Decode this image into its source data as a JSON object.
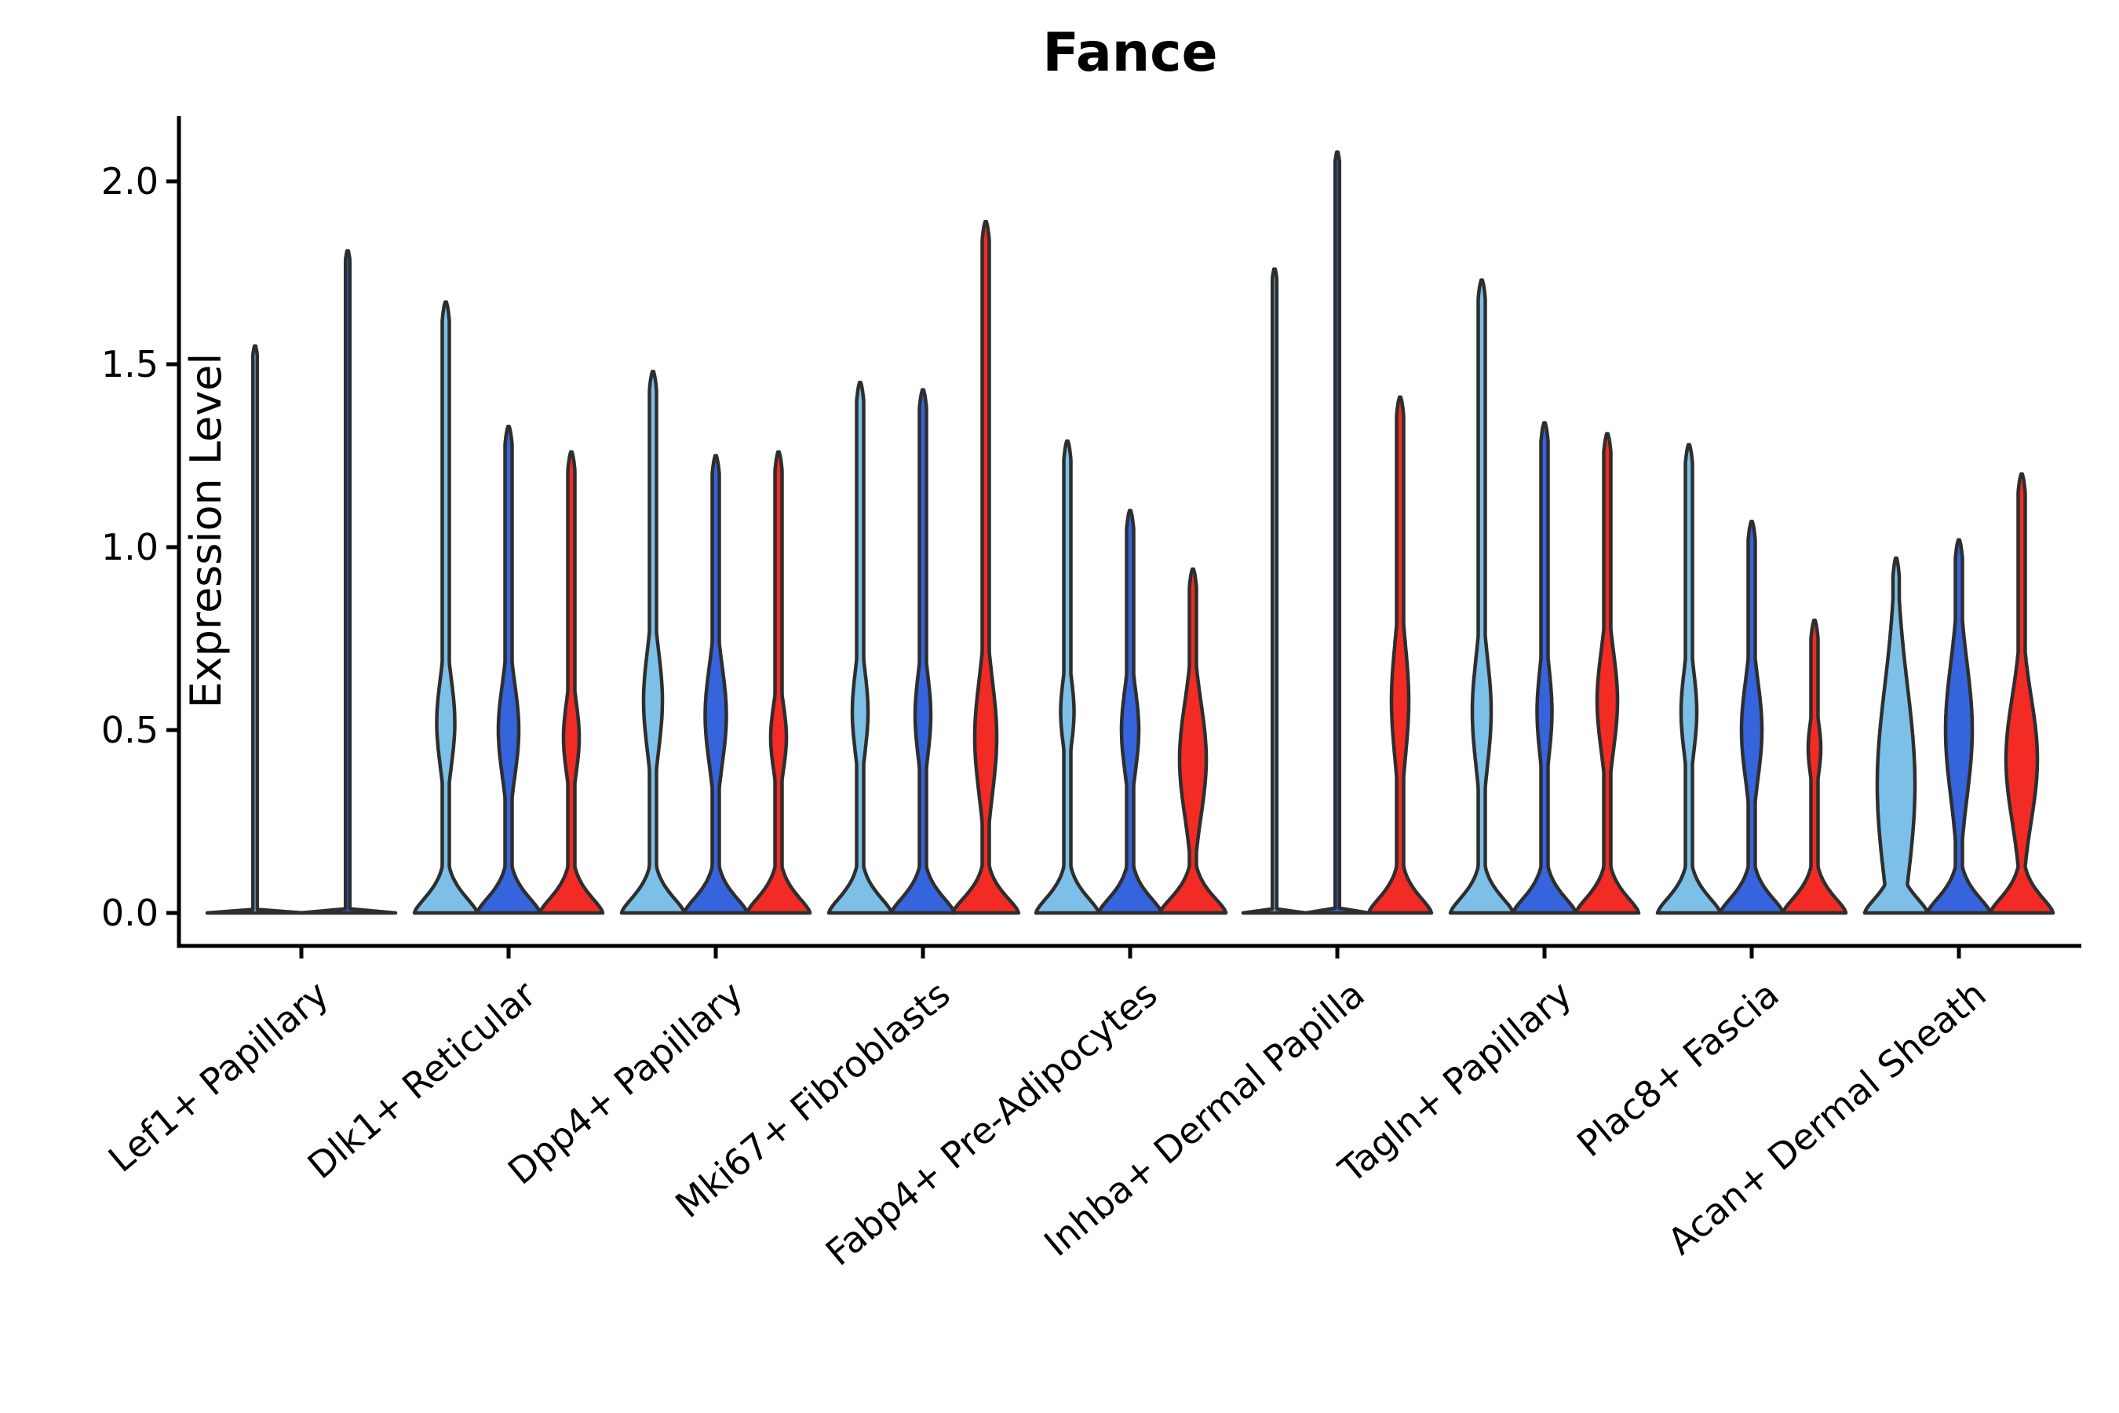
{
  "title": "Fance",
  "ylabel": "Expression Level",
  "colors": {
    "lightblue": "#7CC0E8",
    "blue": "#3564DC",
    "red": "#F22B24",
    "outline": "#2E2E2E",
    "axis": "#000000"
  },
  "yticks": [
    {
      "label": "2.0",
      "value": 2.0
    },
    {
      "label": "1.5",
      "value": 1.5
    },
    {
      "label": "1.0",
      "value": 1.0
    },
    {
      "label": "0.5",
      "value": 0.5
    },
    {
      "label": "0.0",
      "value": 0.0
    }
  ],
  "chart_data": {
    "type": "violin",
    "title": "Fance",
    "xlabel": "",
    "ylabel": "Expression Level",
    "ylim": [
      -0.09,
      2.18
    ],
    "grid": false,
    "legend": "none",
    "series": [
      "lightblue",
      "blue",
      "red"
    ],
    "categories": [
      "Lef1+ Papillary",
      "Dlk1+ Reticular",
      "Dpp4+ Papillary",
      "Mki67+ Fibroblasts",
      "Fabp4+ Pre-Adipocytes",
      "Inhba+ Dermal Papilla",
      "Tagln+ Papillary",
      "Plac8+ Fascia",
      "Acan+ Dermal Sheath"
    ],
    "groups": [
      {
        "category": "Lef1+ Papillary",
        "violins": [
          {
            "color": "lightblue",
            "shape": "flat",
            "max": 1.55,
            "half_width": 61
          },
          {
            "color": "blue",
            "shape": "flat",
            "max": 1.81,
            "half_width": 61
          }
        ]
      },
      {
        "category": "Dlk1+ Reticular",
        "violins": [
          {
            "color": "lightblue",
            "shape": "body",
            "max": 1.67,
            "base": 40,
            "bulge_center": 0.52,
            "bulge_sigma": 0.17,
            "bulge_peak": 11.5
          },
          {
            "color": "blue",
            "shape": "body",
            "max": 1.33,
            "base": 40,
            "bulge_center": 0.5,
            "bulge_sigma": 0.18,
            "bulge_peak": 13
          },
          {
            "color": "red",
            "shape": "body",
            "max": 1.26,
            "base": 40,
            "bulge_center": 0.48,
            "bulge_sigma": 0.14,
            "bulge_peak": 10
          }
        ]
      },
      {
        "category": "Dpp4+ Papillary",
        "violins": [
          {
            "color": "lightblue",
            "shape": "body",
            "max": 1.48,
            "base": 40,
            "bulge_center": 0.58,
            "bulge_sigma": 0.19,
            "bulge_peak": 12
          },
          {
            "color": "blue",
            "shape": "body",
            "max": 1.25,
            "base": 40,
            "bulge_center": 0.54,
            "bulge_sigma": 0.19,
            "bulge_peak": 13.5
          },
          {
            "color": "red",
            "shape": "body",
            "max": 1.26,
            "base": 40,
            "bulge_center": 0.48,
            "bulge_sigma": 0.13,
            "bulge_peak": 10
          }
        ]
      },
      {
        "category": "Mki67+ Fibroblasts",
        "violins": [
          {
            "color": "lightblue",
            "shape": "body",
            "max": 1.45,
            "base": 40,
            "bulge_center": 0.55,
            "bulge_sigma": 0.16,
            "bulge_peak": 10
          },
          {
            "color": "blue",
            "shape": "body",
            "max": 1.43,
            "base": 40,
            "bulge_center": 0.54,
            "bulge_sigma": 0.16,
            "bulge_peak": 10
          },
          {
            "color": "red",
            "shape": "body",
            "max": 1.89,
            "base": 42,
            "bulge_center": 0.48,
            "bulge_sigma": 0.22,
            "bulge_peak": 14
          }
        ]
      },
      {
        "category": "Fabp4+ Pre-Adipocytes",
        "violins": [
          {
            "color": "lightblue",
            "shape": "body",
            "max": 1.29,
            "base": 40,
            "bulge_center": 0.55,
            "bulge_sigma": 0.13,
            "bulge_peak": 8.5
          },
          {
            "color": "blue",
            "shape": "body",
            "max": 1.1,
            "base": 40,
            "bulge_center": 0.5,
            "bulge_sigma": 0.16,
            "bulge_peak": 11
          },
          {
            "color": "red",
            "shape": "body",
            "max": 0.94,
            "base": 42,
            "bulge_center": 0.42,
            "bulge_sigma": 0.22,
            "bulge_peak": 17
          }
        ]
      },
      {
        "category": "Inhba+ Dermal Papilla",
        "violins": [
          {
            "color": "lightblue",
            "shape": "flat",
            "max": 1.76,
            "half_width": 40
          },
          {
            "color": "blue",
            "shape": "flat",
            "max": 2.08,
            "half_width": 40
          },
          {
            "color": "red",
            "shape": "body",
            "max": 1.41,
            "base": 40,
            "bulge_center": 0.58,
            "bulge_sigma": 0.22,
            "bulge_peak": 11
          }
        ]
      },
      {
        "category": "Tagln+ Papillary",
        "violins": [
          {
            "color": "lightblue",
            "shape": "body",
            "max": 1.73,
            "base": 40,
            "bulge_center": 0.55,
            "bulge_sigma": 0.21,
            "bulge_peak": 12
          },
          {
            "color": "blue",
            "shape": "body",
            "max": 1.34,
            "base": 40,
            "bulge_center": 0.55,
            "bulge_sigma": 0.17,
            "bulge_peak": 9.5
          },
          {
            "color": "red",
            "shape": "body",
            "max": 1.31,
            "base": 40,
            "bulge_center": 0.58,
            "bulge_sigma": 0.19,
            "bulge_peak": 13
          }
        ]
      },
      {
        "category": "Plac8+ Fascia",
        "violins": [
          {
            "color": "lightblue",
            "shape": "body",
            "max": 1.28,
            "base": 40,
            "bulge_center": 0.55,
            "bulge_sigma": 0.16,
            "bulge_peak": 10
          },
          {
            "color": "blue",
            "shape": "body",
            "max": 1.07,
            "base": 40,
            "bulge_center": 0.5,
            "bulge_sigma": 0.19,
            "bulge_peak": 13
          },
          {
            "color": "red",
            "shape": "body",
            "max": 0.8,
            "base": 40,
            "bulge_center": 0.45,
            "bulge_sigma": 0.11,
            "bulge_peak": 8
          }
        ]
      },
      {
        "category": "Acan+ Dermal Sheath",
        "violins": [
          {
            "color": "lightblue",
            "shape": "body",
            "max": 0.97,
            "base": 40,
            "bulge_center": 0.35,
            "bulge_sigma": 0.38,
            "bulge_peak": 24,
            "stem": 4
          },
          {
            "color": "blue",
            "shape": "body",
            "max": 1.02,
            "base": 40,
            "bulge_center": 0.5,
            "bulge_sigma": 0.26,
            "bulge_peak": 17
          },
          {
            "color": "red",
            "shape": "body",
            "max": 1.2,
            "base": 40,
            "bulge_center": 0.42,
            "bulge_sigma": 0.24,
            "bulge_peak": 20
          }
        ]
      }
    ]
  }
}
